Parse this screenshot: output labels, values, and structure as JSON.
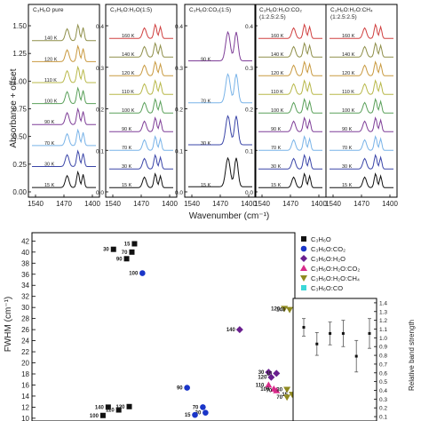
{
  "chart_data": [
    {
      "type": "line",
      "ylabel": "Absorbance + offset",
      "xlabel": "Wavenumber (cm⁻¹)",
      "x_ticks": [
        "1540",
        "1470",
        "1400"
      ],
      "panels": [
        {
          "title_lines": [
            "C₃H₆O pure"
          ],
          "y_ticks": [
            "0.00",
            "0.25",
            "0.50",
            "0.75",
            "1.00",
            "1.25",
            "1.50"
          ],
          "temps": [
            "15 K",
            "30 K",
            "70 K",
            "90 K",
            "100 K",
            "110 K",
            "120 K",
            "140 K"
          ]
        },
        {
          "title_lines": [
            "C₃H₆O:H₂O(1:5)"
          ],
          "y_ticks": [
            "0.0",
            "0.1",
            "0.2",
            "0.3",
            "0.4"
          ],
          "temps": [
            "15 K",
            "30 K",
            "70 K",
            "90 K",
            "100 K",
            "110 K",
            "120 K",
            "140 K",
            "160 K"
          ]
        },
        {
          "title_lines": [
            "C₃H₆O:CO₂(1:5)"
          ],
          "y_ticks": [
            "0.0",
            "0.1",
            "0.2",
            "0.3",
            "0.4"
          ],
          "temps": [
            "15 K",
            "30 K",
            "70 K",
            "90 K"
          ]
        },
        {
          "title_lines": [
            "C₃H₆O:H₂O:CO₂",
            "(1:2.5:2.5)"
          ],
          "y_ticks": [
            "0.0",
            "0.1",
            "0.2",
            "0.3",
            "0.4"
          ],
          "temps": [
            "15 K",
            "30 K",
            "70 K",
            "90 K",
            "100 K",
            "110 K",
            "120 K",
            "140 K",
            "160 K"
          ]
        },
        {
          "title_lines": [
            "C₃H₆O:H₂O:CH₄",
            "(1:2.5:2.5)"
          ],
          "y_ticks": [],
          "temps": [
            "15 K",
            "30 K",
            "70 K",
            "90 K",
            "100 K",
            "110 K",
            "120 K",
            "140 K",
            "160 K"
          ]
        }
      ],
      "series_colors": [
        "#111111",
        "#3a45a8",
        "#79b3e8",
        "#7f3f98",
        "#5aa05a",
        "#b8b84a",
        "#c99a40",
        "#8f8f4a",
        "#d04040"
      ]
    },
    {
      "type": "scatter",
      "ylabel": "FWHM (cm⁻¹)",
      "y_ticks": [
        "10",
        "12",
        "14",
        "16",
        "18",
        "20",
        "22",
        "24",
        "26",
        "28",
        "30",
        "32",
        "34",
        "36",
        "38",
        "40",
        "42"
      ],
      "ylim": [
        9.5,
        43.5
      ],
      "xlim": [
        0,
        10
      ],
      "series": [
        {
          "name": "C₃H₆O",
          "color": "#111111",
          "marker": "square",
          "points": [
            {
              "x": 3.1,
              "y": 40.5,
              "label": "30"
            },
            {
              "x": 3.8,
              "y": 40.0,
              "label": "70"
            },
            {
              "x": 3.6,
              "y": 38.8,
              "label": "90"
            },
            {
              "x": 3.9,
              "y": 41.5,
              "label": "15"
            },
            {
              "x": 2.9,
              "y": 12.0,
              "label": "140"
            },
            {
              "x": 3.3,
              "y": 11.5,
              "label": "110"
            },
            {
              "x": 3.7,
              "y": 12.1,
              "label": "120"
            },
            {
              "x": 2.7,
              "y": 10.5,
              "label": "100"
            }
          ]
        },
        {
          "name": "C₃H₆O:CO₂",
          "color": "#1a35c8",
          "marker": "circle",
          "points": [
            {
              "x": 4.2,
              "y": 36.2,
              "label": "100"
            },
            {
              "x": 5.9,
              "y": 15.5,
              "label": "90"
            },
            {
              "x": 6.5,
              "y": 12.0,
              "label": "70"
            },
            {
              "x": 6.6,
              "y": 11.0,
              "label": "30"
            },
            {
              "x": 6.2,
              "y": 10.6,
              "label": "15"
            }
          ]
        },
        {
          "name": "C₃H₆O:H₂O",
          "color": "#6a1f8f",
          "marker": "diamond",
          "points": [
            {
              "x": 7.9,
              "y": 26.0,
              "label": "140"
            },
            {
              "x": 9.0,
              "y": 18.3,
              "label": "30"
            },
            {
              "x": 9.3,
              "y": 18.1,
              "label": "15"
            },
            {
              "x": 9.1,
              "y": 17.4,
              "label": "120"
            }
          ]
        },
        {
          "name": "C₃H₆O:H₂O:CO₂",
          "color": "#d82a8a",
          "marker": "triangle-up",
          "points": [
            {
              "x": 9.0,
              "y": 16.0,
              "label": "110"
            },
            {
              "x": 9.2,
              "y": 15.3,
              "label": "100"
            },
            {
              "x": 9.3,
              "y": 15.0,
              "label": "70"
            }
          ]
        },
        {
          "name": "C₃H₆O:H₂O:CH₄",
          "color": "#8f8a20",
          "marker": "triangle-down",
          "points": [
            {
              "x": 9.6,
              "y": 29.8,
              "label": "120"
            },
            {
              "x": 9.8,
              "y": 29.6,
              "label": "140"
            },
            {
              "x": 9.7,
              "y": 15.2,
              "label": "30"
            },
            {
              "x": 9.9,
              "y": 14.3,
              "label": "15"
            },
            {
              "x": 9.7,
              "y": 13.8,
              "label": "70"
            }
          ]
        },
        {
          "name": "C₃H₆O:CO",
          "color": "#3bd8d8",
          "marker": "square",
          "points": []
        }
      ]
    },
    {
      "type": "scatter",
      "ylabel": "Relative band strength",
      "y_ticks": [
        "0.1",
        "0.2",
        "0.3",
        "0.4",
        "0.5",
        "0.6",
        "0.7",
        "0.8",
        "0.9",
        "1.0",
        "1.1",
        "1.2",
        "1.3",
        "1.4"
      ],
      "ylim": [
        0.05,
        1.45
      ],
      "points": [
        {
          "value": 1.12,
          "err": 0.1
        },
        {
          "value": 0.93,
          "err": 0.13
        },
        {
          "value": 1.05,
          "err": 0.13
        },
        {
          "value": 1.05,
          "err": 0.15
        },
        {
          "value": 0.79,
          "err": 0.18
        },
        {
          "value": 1.05,
          "err": 0.17
        }
      ]
    }
  ]
}
